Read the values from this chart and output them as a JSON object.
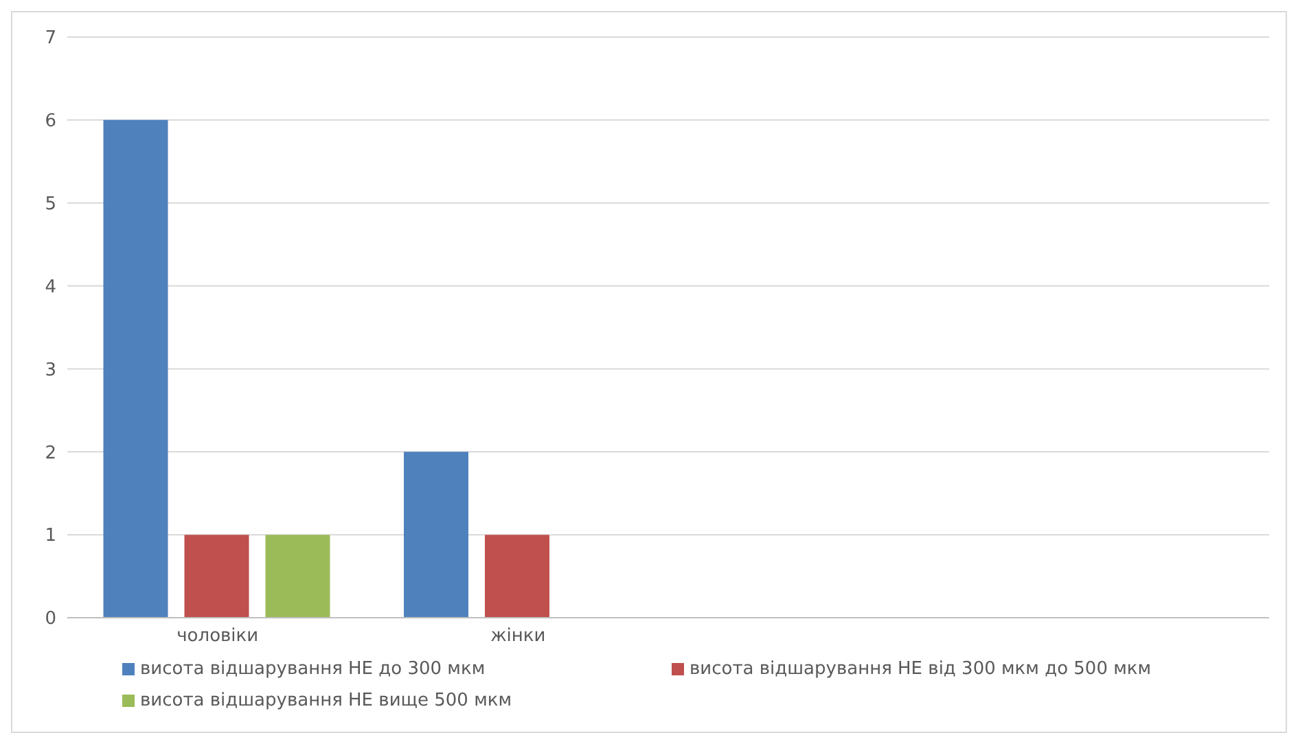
{
  "chart_data": {
    "type": "bar",
    "categories": [
      "чоловіки",
      "жінки",
      null,
      null
    ],
    "series": [
      {
        "name": "висота відшарування НЕ до 300  мкм",
        "color": "#4f81bd",
        "values": [
          6,
          2,
          null,
          null
        ]
      },
      {
        "name": "висота відшарування НЕ від 300  мкм до 500 мкм",
        "color": "#c0504d",
        "values": [
          1,
          1,
          null,
          null
        ]
      },
      {
        "name": "висота відшарування НЕ вище 500  мкм",
        "color": "#9bbb59",
        "values": [
          1,
          null,
          null,
          null
        ]
      }
    ],
    "ylim": [
      0,
      7
    ],
    "yticks": [
      0,
      1,
      2,
      3,
      4,
      5,
      6,
      7
    ],
    "grid": "y",
    "legend": "bottom"
  }
}
